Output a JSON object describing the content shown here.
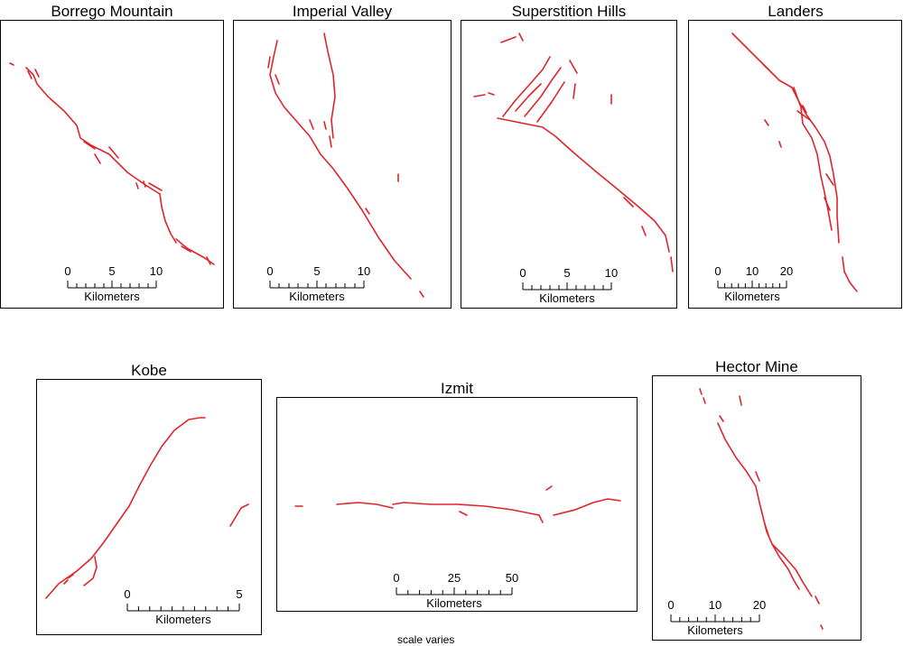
{
  "panels": [
    {
      "title": "Borrego Mountain",
      "scale_labels": [
        "0",
        "5",
        "10"
      ],
      "unit": "Kilometers"
    },
    {
      "title": "Imperial Valley",
      "scale_labels": [
        "0",
        "5",
        "10"
      ],
      "unit": "Kilometers"
    },
    {
      "title": "Superstition Hills",
      "scale_labels": [
        "0",
        "5",
        "10"
      ],
      "unit": "Kilometers"
    },
    {
      "title": "Landers",
      "scale_labels": [
        "0",
        "10",
        "20"
      ],
      "unit": "Kilometers"
    },
    {
      "title": "Kobe",
      "scale_labels": [
        "0",
        "5"
      ],
      "unit": "Kilometers"
    },
    {
      "title": "Izmit",
      "scale_labels": [
        "0",
        "25",
        "50"
      ],
      "unit": "Kilometers"
    },
    {
      "title": "Hector Mine",
      "scale_labels": [
        "0",
        "10",
        "20"
      ],
      "unit": "Kilometers"
    }
  ],
  "footnote": "scale varies",
  "colors": {
    "trace": "#e0242b",
    "frame": "#000000"
  }
}
